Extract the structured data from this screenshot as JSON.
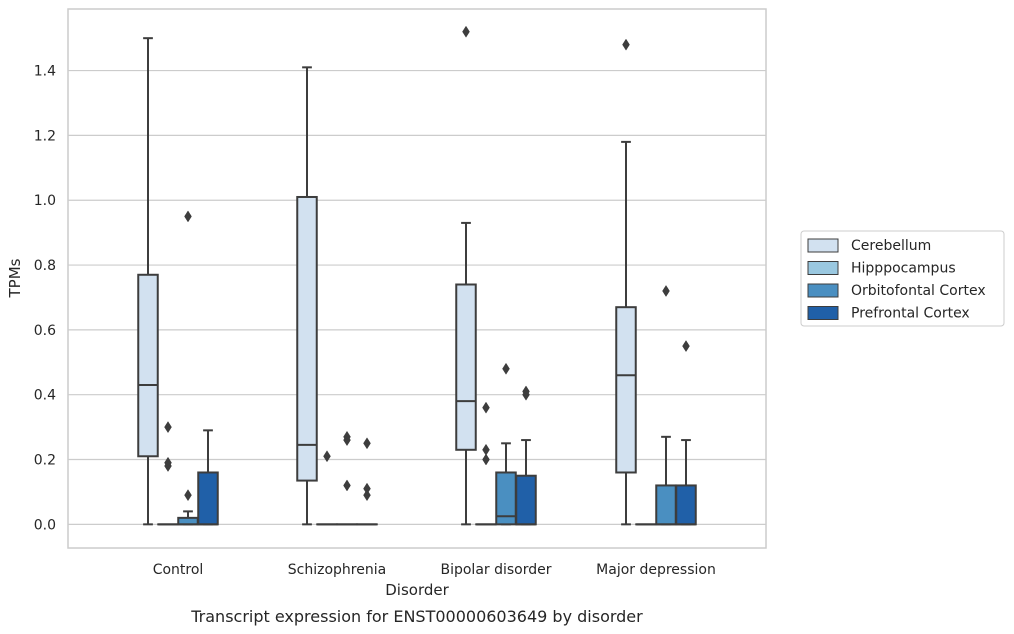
{
  "chart_data": {
    "type": "box",
    "caption": "Transcript expression for ENST00000603649 by disorder",
    "xlabel": "Disorder",
    "ylabel": "TPMs",
    "ylim": [
      -0.073,
      1.59
    ],
    "yticks": [
      0.0,
      0.2,
      0.4,
      0.6,
      0.8,
      1.0,
      1.2,
      1.4
    ],
    "ytick_labels": [
      "0.0",
      "0.2",
      "0.4",
      "0.6",
      "0.8",
      "1.0",
      "1.2",
      "1.4"
    ],
    "grid": "horizontal",
    "legend_position": "right",
    "categories": [
      "Control",
      "Schizophrenia",
      "Bipolar disorder",
      "Major depression"
    ],
    "series": [
      {
        "name": "Cerebellum",
        "color": "#d2e1f0",
        "boxes": [
          {
            "lw": 0.0,
            "q1": 0.21,
            "median": 0.43,
            "q3": 0.77,
            "uw": 1.5,
            "outliers": []
          },
          {
            "lw": 0.0,
            "q1": 0.135,
            "median": 0.245,
            "q3": 1.01,
            "uw": 1.41,
            "outliers": []
          },
          {
            "lw": 0.0,
            "q1": 0.23,
            "median": 0.38,
            "q3": 0.74,
            "uw": 0.93,
            "outliers": [
              1.52
            ]
          },
          {
            "lw": 0.0,
            "q1": 0.16,
            "median": 0.46,
            "q3": 0.67,
            "uw": 1.18,
            "outliers": [
              1.48
            ]
          }
        ]
      },
      {
        "name": "Hipppocampus",
        "color": "#9ac8e0",
        "boxes": [
          {
            "lw": 0.0,
            "q1": 0.0,
            "median": 0.0,
            "q3": 0.0,
            "uw": 0.0,
            "outliers": [
              0.18,
              0.19,
              0.3
            ]
          },
          {
            "lw": 0.0,
            "q1": 0.0,
            "median": 0.0,
            "q3": 0.0,
            "uw": 0.0,
            "outliers": [
              0.21
            ]
          },
          {
            "lw": 0.0,
            "q1": 0.0,
            "median": 0.0,
            "q3": 0.0,
            "uw": 0.0,
            "outliers": [
              0.2,
              0.23,
              0.36
            ]
          },
          {
            "lw": 0.0,
            "q1": 0.0,
            "median": 0.0,
            "q3": 0.0,
            "uw": 0.0,
            "outliers": []
          }
        ]
      },
      {
        "name": "Orbitofontal Cortex",
        "color": "#4a8fc1",
        "boxes": [
          {
            "lw": 0.0,
            "q1": 0.0,
            "median": 0.0,
            "q3": 0.02,
            "uw": 0.04,
            "outliers": [
              0.09,
              0.95
            ]
          },
          {
            "lw": 0.0,
            "q1": 0.0,
            "median": 0.0,
            "q3": 0.0,
            "uw": 0.0,
            "outliers": [
              0.12,
              0.26,
              0.27
            ]
          },
          {
            "lw": 0.0,
            "q1": 0.0,
            "median": 0.025,
            "q3": 0.16,
            "uw": 0.25,
            "outliers": [
              0.48
            ]
          },
          {
            "lw": 0.0,
            "q1": 0.0,
            "median": 0.0,
            "q3": 0.12,
            "uw": 0.27,
            "outliers": [
              0.72
            ]
          }
        ]
      },
      {
        "name": "Prefrontal Cortex",
        "color": "#2060a8",
        "boxes": [
          {
            "lw": 0.0,
            "q1": 0.0,
            "median": 0.0,
            "q3": 0.16,
            "uw": 0.29,
            "outliers": []
          },
          {
            "lw": 0.0,
            "q1": 0.0,
            "median": 0.0,
            "q3": 0.0,
            "uw": 0.0,
            "outliers": [
              0.09,
              0.11,
              0.25
            ]
          },
          {
            "lw": 0.0,
            "q1": 0.0,
            "median": 0.0,
            "q3": 0.15,
            "uw": 0.26,
            "outliers": [
              0.4,
              0.41
            ]
          },
          {
            "lw": 0.0,
            "q1": 0.0,
            "median": 0.0,
            "q3": 0.12,
            "uw": 0.26,
            "outliers": [
              0.55
            ]
          }
        ]
      }
    ]
  }
}
